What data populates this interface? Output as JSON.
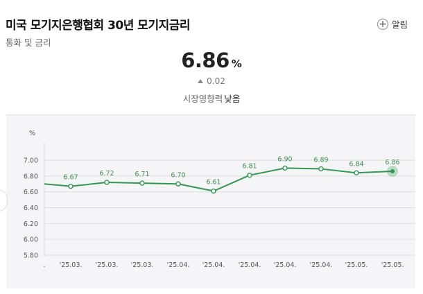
{
  "header": {
    "title": "미국 모기지은행협회 30년 모기지금리",
    "category": "통화 및 금리",
    "alarm_label": "알림"
  },
  "summary": {
    "value": "6.86",
    "unit": "%",
    "change": "0.02",
    "change_direction": "up",
    "impact_label": "시장영향력",
    "impact_level": "낮음"
  },
  "colors": {
    "line": "#2e9a4e",
    "label": "#3a8f4f",
    "panel": "#f5f5f7",
    "grid": "#dddddd"
  },
  "chart_data": {
    "type": "line",
    "ylabel": "%",
    "ylim": [
      5.8,
      7.0
    ],
    "yticks": [
      "7.00",
      "6.80",
      "6.60",
      "6.40",
      "6.20",
      "6.00",
      "5.80"
    ],
    "x": [
      ".",
      "'25.03.",
      "'25.03.",
      "'25.03.",
      "'25.04.",
      "'25.04.",
      "'25.04.",
      "'25.04.",
      "'25.04.",
      "'25.05.",
      "'25.05."
    ],
    "points": [
      6.7,
      6.67,
      6.72,
      6.71,
      6.7,
      6.61,
      6.81,
      6.9,
      6.89,
      6.84,
      6.86
    ],
    "labels": [
      "",
      "6.67",
      "6.72",
      "6.71",
      "6.70",
      "6.61",
      "6.81",
      "6.90",
      "6.89",
      "6.84",
      "6.86"
    ],
    "grid": true
  }
}
